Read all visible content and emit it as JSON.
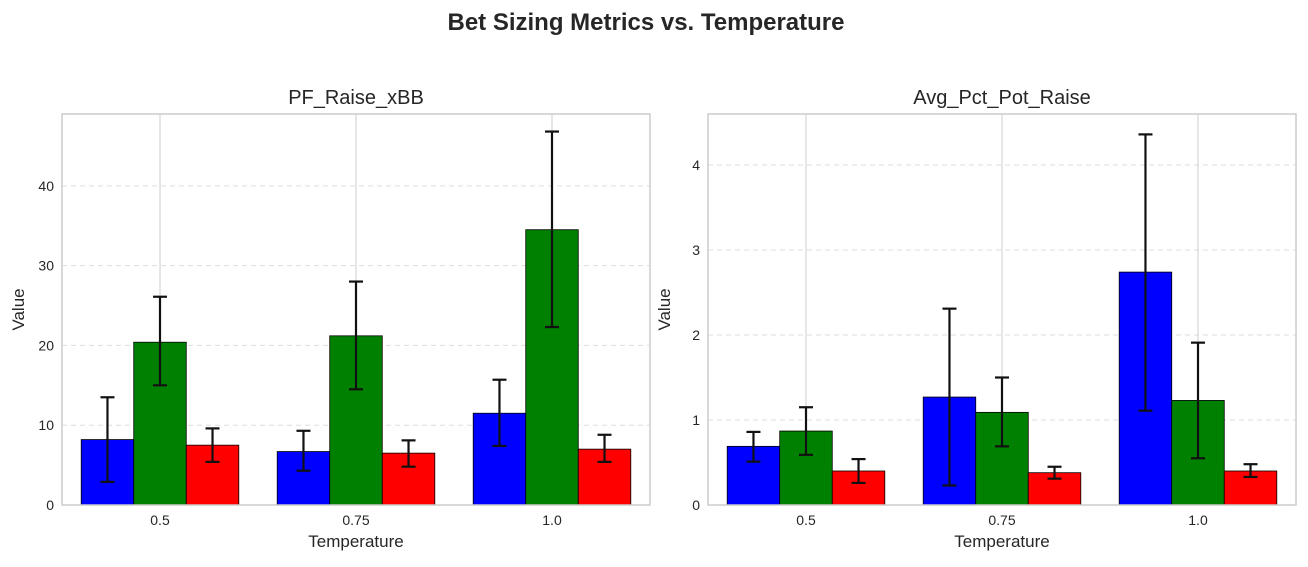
{
  "suptitle": "Bet Sizing Metrics vs. Temperature",
  "colors": {
    "series": [
      "#0000ff",
      "#008000",
      "#ff0000"
    ],
    "frame": "#cccccc",
    "grid": "#dddddd",
    "text": "#262626",
    "errorbar": "#111111"
  },
  "chart_data": [
    {
      "type": "bar",
      "title": "PF_Raise_xBB",
      "xlabel": "Temperature",
      "ylabel": "Value",
      "categories": [
        "0.5",
        "0.75",
        "1.0"
      ],
      "ylim": [
        0,
        49
      ],
      "yticks": [
        0,
        10,
        20,
        30,
        40
      ],
      "grid": "horizontal dashed, vertical at categories",
      "series": [
        {
          "values": [
            8.2,
            6.7,
            11.5
          ],
          "err_low": [
            2.9,
            4.3,
            7.4
          ],
          "err_high": [
            13.5,
            9.3,
            15.7
          ]
        },
        {
          "values": [
            20.4,
            21.2,
            34.5
          ],
          "err_low": [
            15.0,
            14.5,
            22.3
          ],
          "err_high": [
            26.1,
            28.0,
            46.8
          ]
        },
        {
          "values": [
            7.5,
            6.5,
            7.0
          ],
          "err_low": [
            5.4,
            4.8,
            5.4
          ],
          "err_high": [
            9.6,
            8.1,
            8.8
          ]
        }
      ]
    },
    {
      "type": "bar",
      "title": "Avg_Pct_Pot_Raise",
      "xlabel": "Temperature",
      "ylabel": "Value",
      "categories": [
        "0.5",
        "0.75",
        "1.0"
      ],
      "ylim": [
        0,
        4.6
      ],
      "yticks": [
        0,
        1,
        2,
        3,
        4
      ],
      "grid": "horizontal dashed, vertical at categories",
      "series": [
        {
          "values": [
            0.69,
            1.27,
            2.74
          ],
          "err_low": [
            0.51,
            0.23,
            1.11
          ],
          "err_high": [
            0.86,
            2.31,
            4.36
          ]
        },
        {
          "values": [
            0.87,
            1.09,
            1.23
          ],
          "err_low": [
            0.59,
            0.69,
            0.55
          ],
          "err_high": [
            1.15,
            1.5,
            1.91
          ]
        },
        {
          "values": [
            0.4,
            0.38,
            0.4
          ],
          "err_low": [
            0.26,
            0.31,
            0.33
          ],
          "err_high": [
            0.54,
            0.45,
            0.48
          ]
        }
      ]
    }
  ]
}
